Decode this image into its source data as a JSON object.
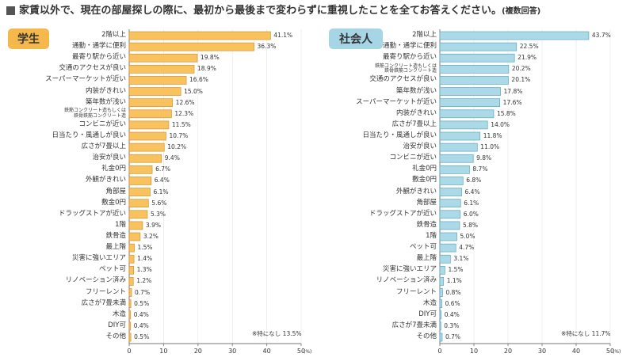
{
  "header": {
    "title": "家賃以外で、現在の部屋探しの際に、最初から最後まで変わらずに重視したことを全てお答えください。",
    "note": "(複数回答)"
  },
  "chart_data": [
    {
      "type": "bar",
      "orientation": "horizontal",
      "title": "学生",
      "color": "#f8c35e",
      "edge_color": "#d9912a",
      "badge_color": "#f5b84a",
      "grid": true,
      "categories": [
        "2階以上",
        "通勤・通学に便利",
        "最寄り駅から近い",
        "交通のアクセスが良い",
        "スーパーマーケットが近い",
        "内装がきれい",
        "築年数が浅い",
        "鉄筋コンクリート造もしくは\n鉄骨鉄筋コンクリート造",
        "コンビニが近い",
        "日当たり・風通しが良い",
        "広さが7畳以上",
        "治安が良い",
        "礼金0円",
        "外観がきれい",
        "角部屋",
        "敷金0円",
        "ドラッグストアが近い",
        "1階",
        "鉄骨造",
        "最上階",
        "災害に強いエリア",
        "ペット可",
        "リノベーション済み",
        "フリーレント",
        "広さが7畳未満",
        "木造",
        "DIY可",
        "その他"
      ],
      "values": [
        41.1,
        36.3,
        19.8,
        18.9,
        16.6,
        15.0,
        12.6,
        12.3,
        11.5,
        10.7,
        10.2,
        9.4,
        6.7,
        6.4,
        6.1,
        5.6,
        5.3,
        3.9,
        3.2,
        1.5,
        1.4,
        1.3,
        1.2,
        0.7,
        0.5,
        0.4,
        0.4,
        0.5
      ],
      "value_labels": [
        "41.1%",
        "36.3%",
        "19.8%",
        "18.9%",
        "16.6%",
        "15.0%",
        "12.6%",
        "12.3%",
        "11.5%",
        "10.7%",
        "10.2%",
        "9.4%",
        "6.7%",
        "6.4%",
        "6.1%",
        "5.6%",
        "5.3%",
        "3.9%",
        "3.2%",
        "1.5%",
        "1.4%",
        "1.3%",
        "1.2%",
        "0.7%",
        "0.5%",
        "0.4%",
        "0.4%",
        "0.5%"
      ],
      "xlim": [
        0,
        50
      ],
      "xticks": [
        0,
        10,
        20,
        30,
        40,
        50
      ],
      "x_label": "(%)",
      "note": "※特になし 13.5%"
    },
    {
      "type": "bar",
      "orientation": "horizontal",
      "title": "社会人",
      "color": "#acd9e7",
      "edge_color": "#5aa7c0",
      "badge_color": "#a6d6e5",
      "grid": true,
      "categories": [
        "2階以上",
        "通勤・通学に便利",
        "最寄り駅から近い",
        "鉄筋コンクリート造もしくは\n鉄骨鉄筋コンクリート造",
        "交通のアクセスが良い",
        "築年数が浅い",
        "スーパーマーケットが近い",
        "内装がきれい",
        "広さが7畳以上",
        "日当たり・風通しが良い",
        "治安が良い",
        "コンビニが近い",
        "礼金0円",
        "敷金0円",
        "外観がきれい",
        "角部屋",
        "ドラッグストアが近い",
        "鉄骨造",
        "1階",
        "ペット可",
        "最上階",
        "災害に強いエリア",
        "リノベーション済み",
        "フリーレント",
        "木造",
        "DIY可",
        "広さが7畳未満",
        "その他"
      ],
      "values": [
        43.7,
        22.5,
        21.9,
        20.2,
        20.1,
        17.8,
        17.6,
        15.8,
        14.0,
        11.8,
        11.0,
        9.8,
        8.7,
        6.8,
        6.4,
        6.1,
        6.0,
        5.8,
        5.0,
        4.7,
        3.1,
        1.5,
        1.1,
        0.8,
        0.6,
        0.4,
        0.3,
        0.7
      ],
      "value_labels": [
        "43.7%",
        "22.5%",
        "21.9%",
        "20.2%",
        "20.1%",
        "17.8%",
        "17.6%",
        "15.8%",
        "14.0%",
        "11.8%",
        "11.0%",
        "9.8%",
        "8.7%",
        "6.8%",
        "6.4%",
        "6.1%",
        "6.0%",
        "5.8%",
        "5.0%",
        "4.7%",
        "3.1%",
        "1.5%",
        "1.1%",
        "0.8%",
        "0.6%",
        "0.4%",
        "0.3%",
        "0.7%"
      ],
      "xlim": [
        0,
        50
      ],
      "xticks": [
        0,
        10,
        20,
        30,
        40,
        50
      ],
      "x_label": "(%)",
      "note": "※特になし 11.7%"
    }
  ]
}
